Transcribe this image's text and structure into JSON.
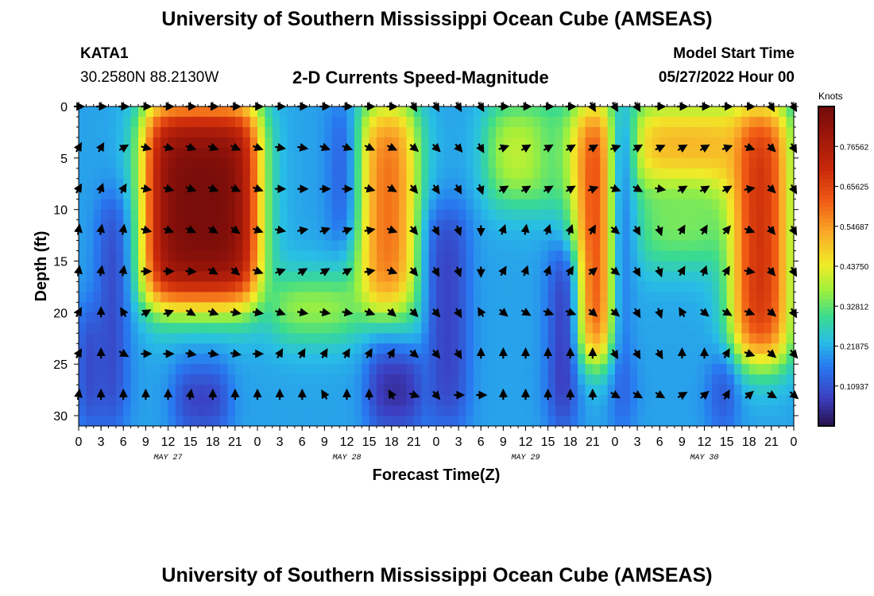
{
  "header": {
    "title": "University of Southern Mississippi Ocean Cube (AMSEAS)",
    "station": "KATA1",
    "coords": "30.2580N  88.2130W",
    "chart_title": "2-D Currents Speed-Magnitude",
    "model_start_label": "Model Start Time",
    "model_start_value": "05/27/2022 Hour 00"
  },
  "footer": {
    "title": "University of Southern Mississippi Ocean Cube (AMSEAS)"
  },
  "chart_data": {
    "type": "heatmap",
    "title": "2-D Currents Speed-Magnitude",
    "xlabel": "Forecast Time(Z)",
    "ylabel": "Depth (ft)",
    "xlim": [
      0,
      96
    ],
    "ylim": [
      0,
      31
    ],
    "y_ticks": [
      0,
      5,
      10,
      15,
      20,
      25,
      30
    ],
    "x_tick_hours": [
      0,
      3,
      6,
      9,
      12,
      15,
      18,
      21,
      24,
      27,
      30,
      33,
      36,
      39,
      42,
      45,
      48,
      51,
      54,
      57,
      60,
      63,
      66,
      69,
      72,
      75,
      78,
      81,
      84,
      87,
      90,
      93,
      96
    ],
    "x_tick_labels": [
      "0",
      "3",
      "6",
      "9",
      "12",
      "15",
      "18",
      "21",
      "0",
      "3",
      "6",
      "9",
      "12",
      "15",
      "18",
      "21",
      "0",
      "3",
      "6",
      "9",
      "12",
      "15",
      "18",
      "21",
      "0",
      "3",
      "6",
      "9",
      "12",
      "15",
      "18",
      "21",
      "0"
    ],
    "day_labels": [
      {
        "hour": 12,
        "label": "MAY 27"
      },
      {
        "hour": 36,
        "label": "MAY 28"
      },
      {
        "hour": 60,
        "label": "MAY 29"
      },
      {
        "hour": 84,
        "label": "MAY 30"
      }
    ],
    "colorbar": {
      "unit": "Knots",
      "min": 0,
      "max": 0.875,
      "tick_values": [
        0.10937,
        0.21875,
        0.32812,
        0.4375,
        0.54687,
        0.65625,
        0.76562
      ],
      "tick_labels": [
        "0.10937",
        "0.21875",
        "0.32812",
        "0.43750",
        "0.54687",
        "0.65625",
        "0.76562"
      ]
    },
    "speed_model": {
      "background": 0.2,
      "blobs": [
        {
          "t0": 9,
          "t1": 24,
          "d0": 0,
          "d1": 19,
          "peak": 0.86
        },
        {
          "t0": 26,
          "t1": 37,
          "d0": 17.5,
          "d1": 21.5,
          "peak": 0.45
        },
        {
          "t0": 38,
          "t1": 45,
          "d0": 0,
          "d1": 20,
          "peak": 0.62
        },
        {
          "t0": 44,
          "t1": 46,
          "d0": 19,
          "d1": 23.5,
          "peak": 0.35
        },
        {
          "t0": 55,
          "t1": 64,
          "d0": 0,
          "d1": 9,
          "peak": 0.42
        },
        {
          "t0": 62,
          "t1": 68,
          "d0": 0,
          "d1": 8,
          "peak": 0.3
        },
        {
          "t0": 67,
          "t1": 72,
          "d0": 0,
          "d1": 24.5,
          "peak": 0.74
        },
        {
          "t0": 74,
          "t1": 88,
          "d0": 0,
          "d1": 8,
          "peak": 0.55
        },
        {
          "t0": 75,
          "t1": 86,
          "d0": 8,
          "d1": 15,
          "peak": 0.36
        },
        {
          "t0": 88,
          "t1": 95,
          "d0": 0,
          "d1": 24.5,
          "peak": 0.72
        }
      ],
      "lows": [
        {
          "t0": 0.5,
          "t1": 2.5,
          "d0": 20,
          "d1": 31,
          "trough": 0.02
        },
        {
          "t0": 3,
          "t1": 6,
          "d0": 9,
          "d1": 31,
          "trough": 0.06
        },
        {
          "t0": 13,
          "t1": 20,
          "d0": 26,
          "d1": 31,
          "trough": 0.03
        },
        {
          "t0": 34,
          "t1": 36.5,
          "d0": 0,
          "d1": 13,
          "trough": 0.09
        },
        {
          "t0": 39,
          "t1": 46,
          "d0": 24,
          "d1": 31,
          "trough": 0.02
        },
        {
          "t0": 47,
          "t1": 52,
          "d0": 10,
          "d1": 31,
          "trough": 0.07
        },
        {
          "t0": 63.5,
          "t1": 66.5,
          "d0": 14,
          "d1": 31,
          "trough": 0.02
        },
        {
          "t0": 72,
          "t1": 74,
          "d0": 0,
          "d1": 31,
          "trough": 0.07
        },
        {
          "t0": 85,
          "t1": 88,
          "d0": 25,
          "d1": 31,
          "trough": 0.06
        }
      ]
    },
    "vector_depths": [
      0,
      4,
      8,
      12,
      16,
      20,
      24,
      28
    ],
    "vector_hours": [
      0,
      3,
      6,
      9,
      12,
      15,
      18,
      21,
      24,
      27,
      30,
      33,
      36,
      39,
      42,
      45,
      48,
      51,
      54,
      57,
      60,
      63,
      66,
      69,
      72,
      75,
      78,
      81,
      84,
      87,
      90,
      93,
      96
    ],
    "vector_direction_deg_from_east": [
      [
        0,
        0,
        0,
        0,
        0,
        0,
        0,
        0,
        0,
        0,
        0,
        0,
        0,
        0,
        0,
        -60,
        -60,
        -60,
        -60,
        0,
        0,
        0,
        0,
        -60,
        -60,
        -60,
        0,
        0,
        0,
        0,
        0,
        -60,
        -60
      ],
      [
        60,
        60,
        30,
        -15,
        -15,
        -20,
        -20,
        -25,
        -20,
        -10,
        -10,
        -20,
        -20,
        -25,
        -25,
        -40,
        -45,
        -50,
        -60,
        20,
        30,
        30,
        30,
        30,
        20,
        30,
        25,
        30,
        30,
        20,
        -20,
        -45,
        -60
      ],
      [
        60,
        70,
        60,
        -10,
        -15,
        -20,
        -20,
        -25,
        -20,
        0,
        0,
        0,
        0,
        -15,
        -30,
        -50,
        -55,
        -60,
        -70,
        30,
        30,
        30,
        30,
        20,
        -20,
        -30,
        -10,
        30,
        30,
        30,
        10,
        -45,
        -60
      ],
      [
        80,
        80,
        80,
        -15,
        -20,
        -25,
        -30,
        -35,
        -20,
        -10,
        10,
        20,
        20,
        10,
        -20,
        -50,
        -60,
        -70,
        -90,
        70,
        80,
        70,
        70,
        60,
        -40,
        -60,
        -70,
        60,
        60,
        50,
        -20,
        -50,
        -60
      ],
      [
        80,
        80,
        80,
        0,
        0,
        -5,
        -30,
        -40,
        -20,
        20,
        30,
        30,
        30,
        10,
        -20,
        -50,
        -60,
        -70,
        -90,
        60,
        70,
        70,
        60,
        40,
        -40,
        -60,
        -70,
        60,
        70,
        60,
        -10,
        -50,
        -60
      ],
      [
        60,
        90,
        120,
        30,
        20,
        -30,
        -20,
        -10,
        -10,
        -20,
        -10,
        -10,
        -10,
        -20,
        -40,
        -45,
        -50,
        -60,
        120,
        -40,
        -30,
        -20,
        -20,
        -40,
        -40,
        -60,
        -70,
        120,
        -40,
        -30,
        -20,
        -40,
        -60
      ],
      [
        60,
        90,
        -30,
        0,
        0,
        -10,
        -10,
        -10,
        0,
        60,
        60,
        60,
        60,
        60,
        60,
        -40,
        -50,
        -60,
        90,
        90,
        90,
        90,
        90,
        90,
        -60,
        -60,
        -60,
        90,
        90,
        60,
        -20,
        -40,
        -50
      ],
      [
        80,
        90,
        90,
        90,
        90,
        80,
        90,
        90,
        90,
        90,
        90,
        120,
        90,
        90,
        120,
        -20,
        -50,
        0,
        0,
        90,
        90,
        90,
        90,
        90,
        -30,
        -30,
        -30,
        30,
        40,
        60,
        40,
        -30,
        -40
      ]
    ]
  }
}
